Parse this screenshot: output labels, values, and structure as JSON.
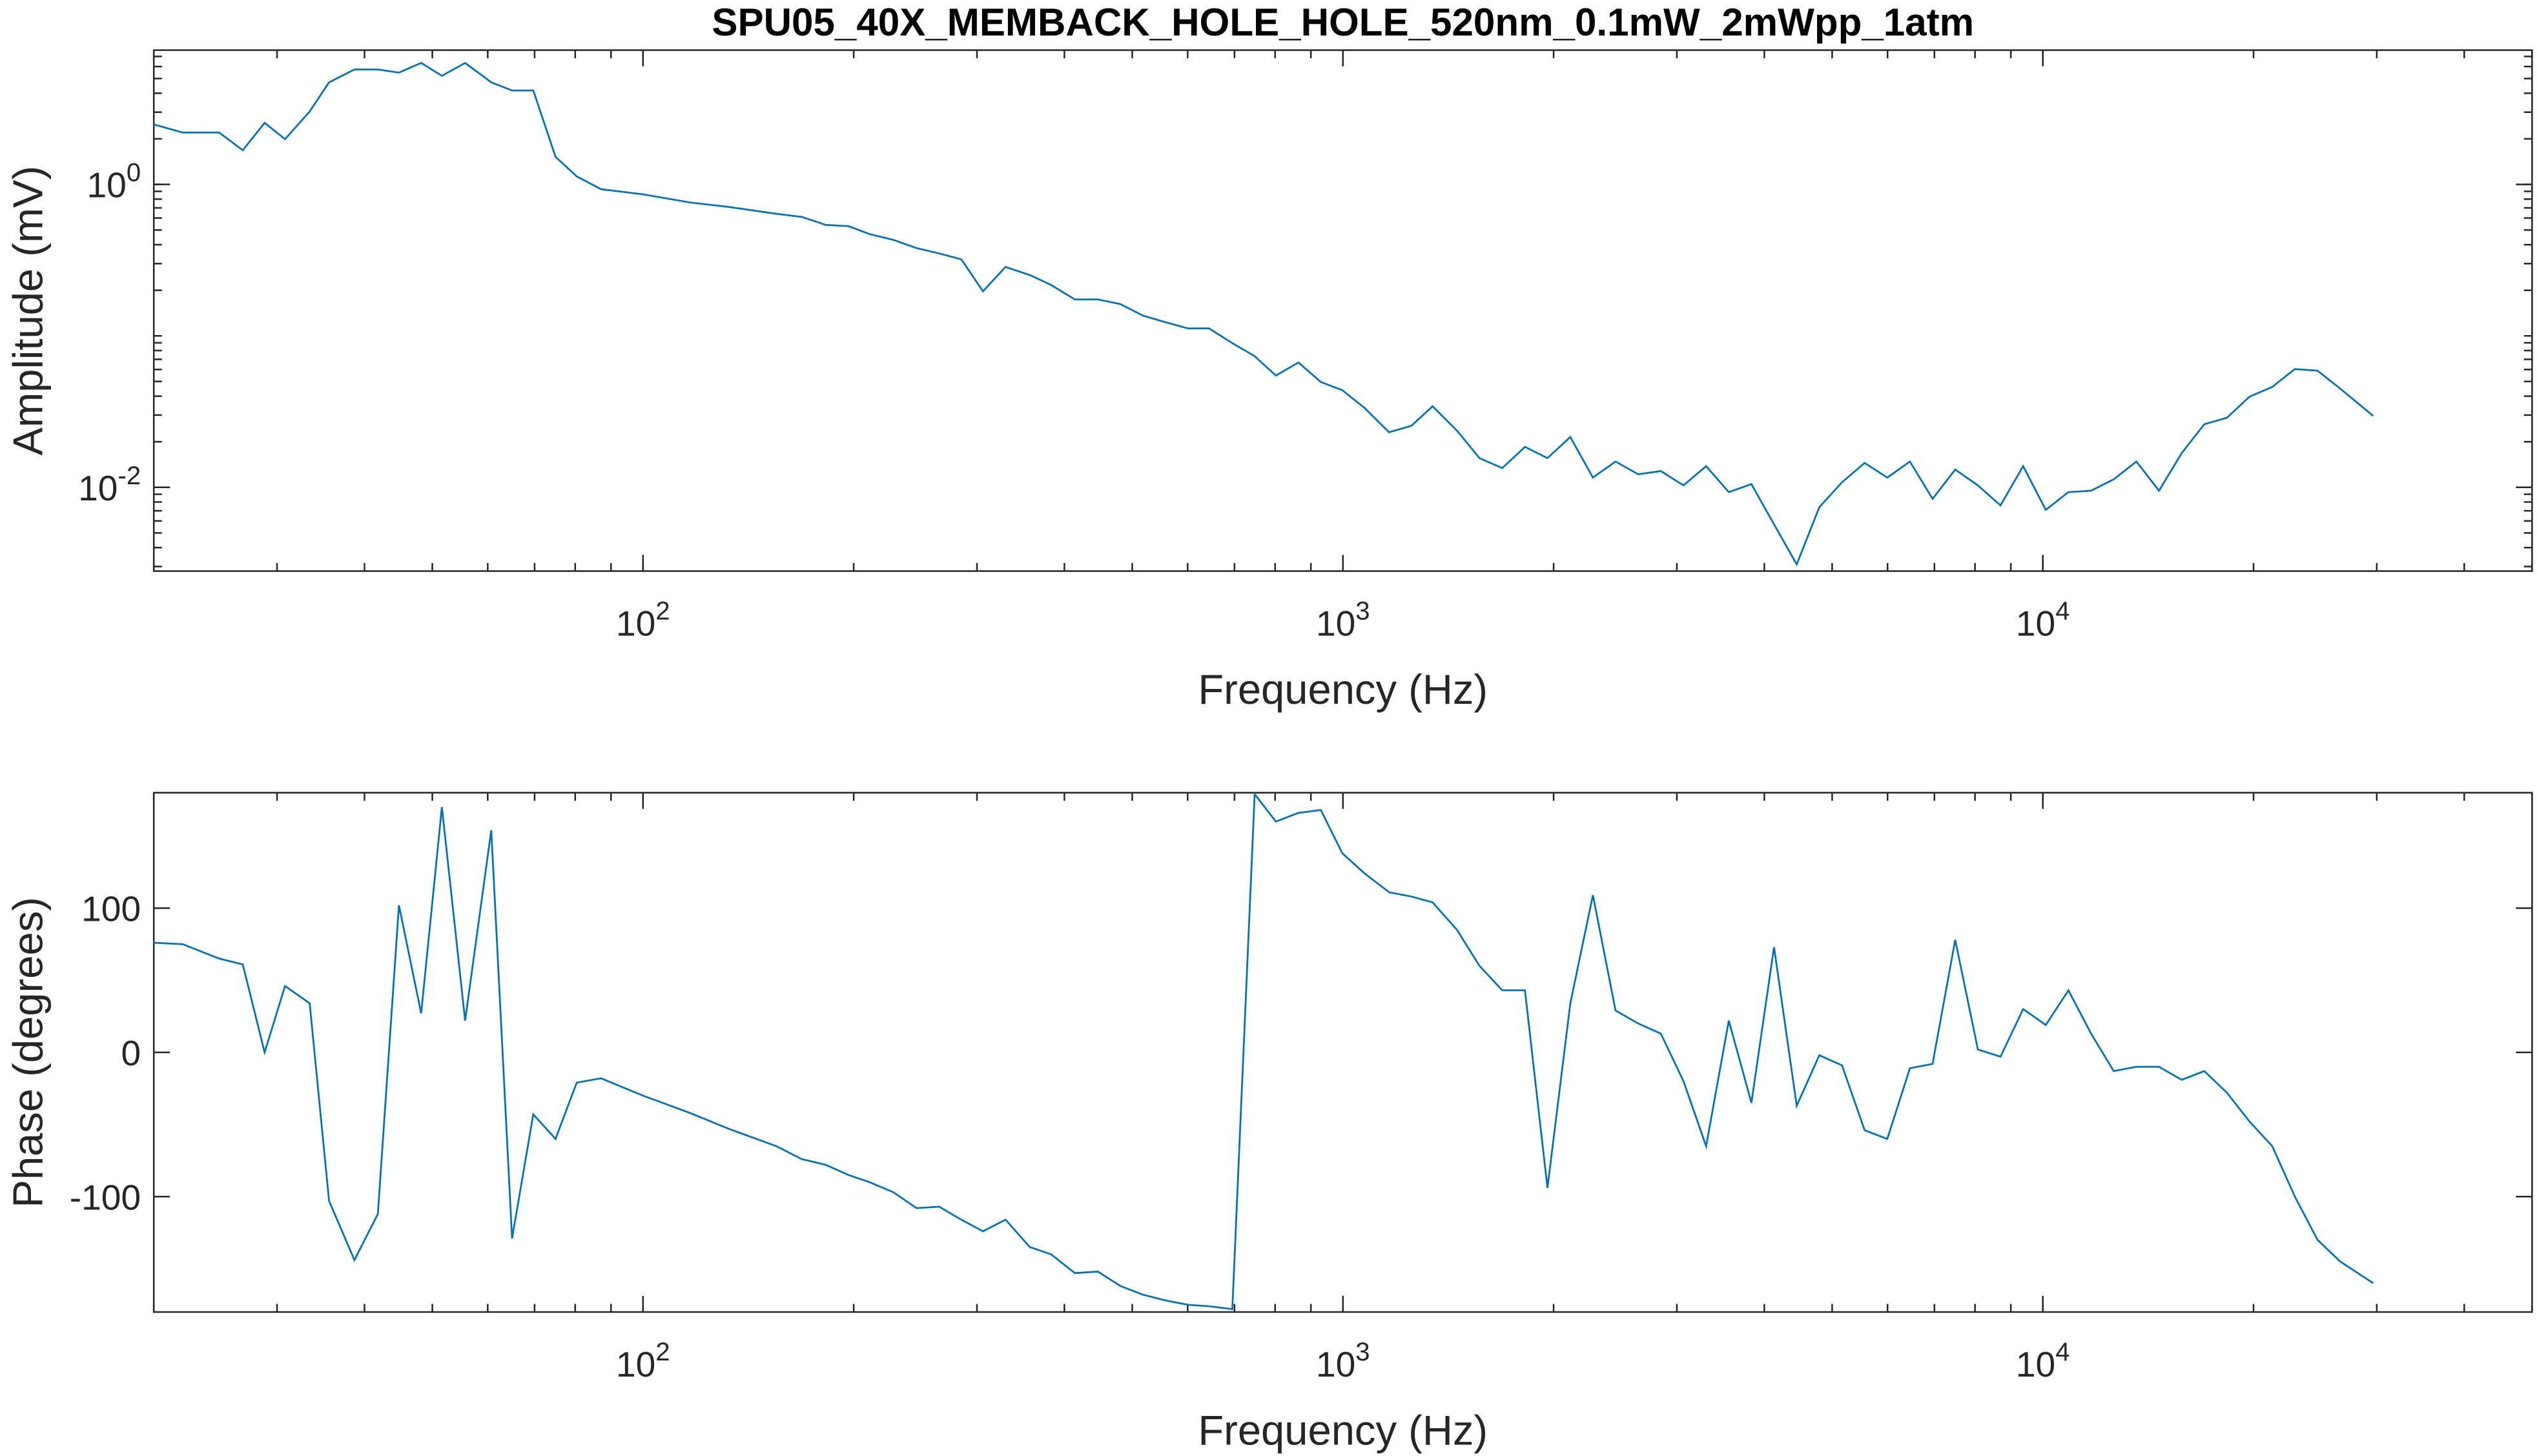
{
  "chart_data": [
    {
      "type": "line",
      "title": "SPU05_40X_MEMBACK_HOLE_HOLE_520nm_0.1mW_2mWpp_1atm",
      "x_label": "Frequency (Hz)",
      "y_label": "Amplitude (mV)",
      "x_log": true,
      "y_log": true,
      "color": "#0072bd",
      "x": [
        20,
        22,
        24.8,
        26.8,
        28.8,
        30.8,
        33.4,
        35.6,
        38.7,
        41.8,
        44.8,
        48.2,
        51.6,
        55.7,
        60.7,
        65,
        69.7,
        75,
        80.4,
        87.1,
        100,
        116.7,
        132.6,
        155,
        168.6,
        182.5,
        196.6,
        210.7,
        228,
        245.9,
        265,
        285,
        306,
        329.6,
        357,
        382.8,
        414,
        446.7,
        481,
        518,
        558,
        601,
        644,
        695,
        748,
        802,
        864,
        930,
        998,
        1074,
        1164,
        1253,
        1343,
        1455,
        1567,
        1689,
        1820,
        1960,
        2113,
        2276,
        2452,
        2642,
        2846,
        3066,
        3303,
        3559,
        3834,
        4130,
        4450,
        4794,
        5165,
        5564,
        5995,
        6458,
        6958,
        7496,
        8076,
        8700,
        9373,
        10098,
        10879,
        11720,
        12627,
        13603,
        14655,
        15788,
        17009,
        18325,
        19742,
        21269,
        22914,
        24686,
        26595,
        29650
      ],
      "values": [
        2.49,
        2.2,
        2.2,
        1.68,
        2.55,
        1.99,
        3.03,
        4.72,
        5.74,
        5.74,
        5.47,
        6.34,
        5.21,
        6.34,
        4.72,
        4.17,
        4.17,
        1.52,
        1.13,
        0.93,
        0.86,
        0.76,
        0.71,
        0.64,
        0.61,
        0.54,
        0.53,
        0.47,
        0.43,
        0.38,
        0.35,
        0.32,
        0.197,
        0.285,
        0.252,
        0.217,
        0.174,
        0.174,
        0.162,
        0.136,
        0.123,
        0.112,
        0.112,
        0.0895,
        0.0735,
        0.0547,
        0.0667,
        0.0496,
        0.0438,
        0.0334,
        0.0231,
        0.0255,
        0.0343,
        0.0237,
        0.0156,
        0.0134,
        0.0185,
        0.0156,
        0.0215,
        0.0116,
        0.0148,
        0.0122,
        0.0128,
        0.0103,
        0.0138,
        0.0093,
        0.0105,
        0.0057,
        0.0031,
        0.0074,
        0.0108,
        0.0145,
        0.0116,
        0.0148,
        0.0084,
        0.0131,
        0.0103,
        0.0076,
        0.0138,
        0.0071,
        0.0093,
        0.0095,
        0.0113,
        0.0148,
        0.0095,
        0.0168,
        0.0261,
        0.0288,
        0.0397,
        0.046,
        0.0604,
        0.0589,
        0.0449,
        0.0296
      ],
      "xlim": [
        20,
        50000
      ],
      "ylim": [
        0.0028,
        7.7
      ],
      "xticks": [
        {
          "value": 100,
          "label": "10^2"
        },
        {
          "value": 1000,
          "label": "10^3"
        },
        {
          "value": 10000,
          "label": "10^4"
        }
      ],
      "yticks": [
        {
          "value": 0.01,
          "label": "10^-2"
        },
        {
          "value": 1,
          "label": "10^0"
        }
      ]
    },
    {
      "type": "line",
      "x_label": "Frequency (Hz)",
      "y_label": "Phase (degrees)",
      "x_log": true,
      "y_log": false,
      "color": "#0072bd",
      "x": [
        20,
        22,
        24.8,
        26.8,
        28.8,
        30.8,
        33.4,
        35.6,
        38.7,
        41.8,
        44.8,
        48.2,
        51.6,
        55.7,
        60.7,
        65,
        69.7,
        75,
        80.4,
        87.1,
        100,
        116.7,
        132.6,
        155,
        168.6,
        182.5,
        196.6,
        210.7,
        228,
        245.9,
        265,
        285,
        306,
        329.6,
        357,
        382.8,
        414,
        446.7,
        481,
        518,
        558,
        601,
        644,
        695,
        748,
        802,
        864,
        930,
        998,
        1074,
        1164,
        1253,
        1343,
        1455,
        1567,
        1689,
        1820,
        1960,
        2113,
        2276,
        2452,
        2642,
        2846,
        3066,
        3303,
        3559,
        3834,
        4130,
        4450,
        4794,
        5165,
        5564,
        5995,
        6458,
        6958,
        7496,
        8076,
        8700,
        9373,
        10098,
        10879,
        11720,
        12627,
        13603,
        14655,
        15788,
        17009,
        18325,
        19742,
        21269,
        22914,
        24686,
        26595,
        29650
      ],
      "values": [
        76,
        75,
        65,
        61,
        0,
        46,
        34,
        -103,
        -144,
        -112,
        102,
        27,
        170,
        22,
        154,
        -129,
        -43,
        -60,
        -21,
        -18,
        -30,
        -42,
        -53,
        -65,
        -74,
        -78,
        -85,
        -90,
        -97,
        -108,
        -107,
        -116,
        -124,
        -116,
        -135,
        -140,
        -153,
        -152,
        -162,
        -168,
        -172,
        -175,
        -176,
        -178,
        179,
        160,
        166,
        168,
        138,
        124,
        111,
        108,
        104,
        85,
        60,
        43,
        43,
        -94,
        34,
        109,
        29,
        20,
        13,
        -20,
        -65,
        22,
        -35,
        73,
        -37,
        -2,
        -9,
        -54,
        -60,
        -11,
        -8,
        78,
        2,
        -3,
        30,
        19,
        43,
        13,
        -13,
        -10,
        -10,
        -19,
        -13,
        -28,
        -48,
        -65,
        -100,
        -130,
        -145,
        -160
      ],
      "xlim": [
        20,
        50000
      ],
      "ylim": [
        -180,
        180
      ],
      "xticks": [
        {
          "value": 100,
          "label": "10^2"
        },
        {
          "value": 1000,
          "label": "10^3"
        },
        {
          "value": 10000,
          "label": "10^4"
        }
      ],
      "yticks": [
        -100,
        0,
        100
      ]
    }
  ]
}
